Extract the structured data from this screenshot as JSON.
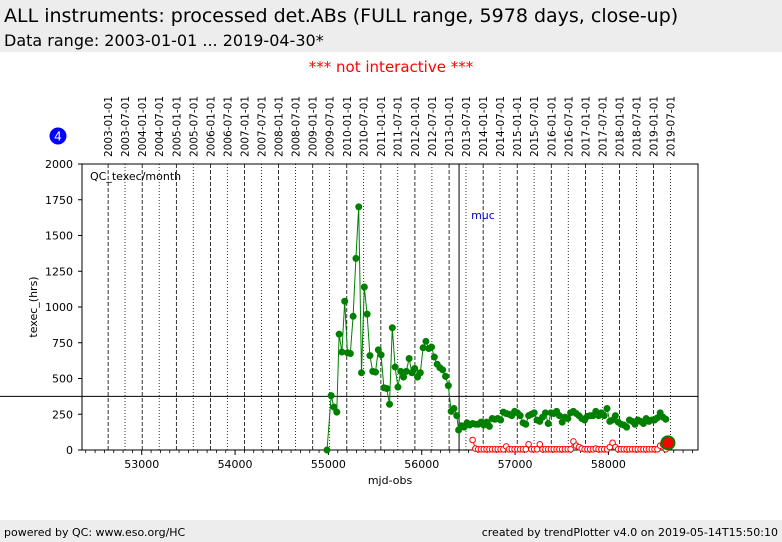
{
  "header": {
    "title": "ALL instruments: processed det.ABs (FULL range, 5978 days, close-up)",
    "subtitle": "Data range: 2003-01-01 ... 2019-04-30*"
  },
  "notice": "*** not interactive ***",
  "badge": "4",
  "footer": {
    "left": "powered by QC: www.eso.org/HC",
    "right": "created by trendPlotter v4.0 on 2019-05-14T15:50:10"
  },
  "colors": {
    "series_green": "#008000",
    "series_red": "#ff0000",
    "badge": "#0000ff",
    "marker_label": "#0000cc",
    "header_bg": "#ededed"
  },
  "chart_data": {
    "type": "scatter",
    "title": "",
    "panel_label": "QC_texec/month",
    "xlabel": "mjd-obs",
    "ylabel": "texec_(hrs)",
    "xlim": [
      52360,
      58960
    ],
    "ylim": [
      0,
      2000
    ],
    "x_ticks": [
      53000,
      54000,
      55000,
      56000,
      57000,
      58000
    ],
    "y_ticks": [
      0,
      250,
      500,
      750,
      1000,
      1250,
      1500,
      1750,
      2000
    ],
    "date_ticks": [
      {
        "mjd": 52640,
        "label": "2003-01-01"
      },
      {
        "mjd": 52821,
        "label": "2003-07-01"
      },
      {
        "mjd": 53005,
        "label": "2004-01-01"
      },
      {
        "mjd": 53187,
        "label": "2004-07-01"
      },
      {
        "mjd": 53371,
        "label": "2005-01-01"
      },
      {
        "mjd": 53552,
        "label": "2005-07-01"
      },
      {
        "mjd": 53736,
        "label": "2006-01-01"
      },
      {
        "mjd": 53917,
        "label": "2006-07-01"
      },
      {
        "mjd": 54101,
        "label": "2007-01-01"
      },
      {
        "mjd": 54282,
        "label": "2007-07-01"
      },
      {
        "mjd": 54466,
        "label": "2008-01-01"
      },
      {
        "mjd": 54648,
        "label": "2008-07-01"
      },
      {
        "mjd": 54832,
        "label": "2009-01-01"
      },
      {
        "mjd": 55013,
        "label": "2009-07-01"
      },
      {
        "mjd": 55197,
        "label": "2010-01-01"
      },
      {
        "mjd": 55378,
        "label": "2010-07-01"
      },
      {
        "mjd": 55562,
        "label": "2011-01-01"
      },
      {
        "mjd": 55743,
        "label": "2011-07-01"
      },
      {
        "mjd": 55927,
        "label": "2012-01-01"
      },
      {
        "mjd": 56109,
        "label": "2012-07-01"
      },
      {
        "mjd": 56293,
        "label": "2013-01-01"
      },
      {
        "mjd": 56474,
        "label": "2013-07-01"
      },
      {
        "mjd": 56658,
        "label": "2014-01-01"
      },
      {
        "mjd": 56839,
        "label": "2014-07-01"
      },
      {
        "mjd": 57023,
        "label": "2015-01-01"
      },
      {
        "mjd": 57204,
        "label": "2015-07-01"
      },
      {
        "mjd": 57388,
        "label": "2016-01-01"
      },
      {
        "mjd": 57570,
        "label": "2016-07-01"
      },
      {
        "mjd": 57754,
        "label": "2017-01-01"
      },
      {
        "mjd": 57935,
        "label": "2017-07-01"
      },
      {
        "mjd": 58119,
        "label": "2018-01-01"
      },
      {
        "mjd": 58300,
        "label": "2018-07-01"
      },
      {
        "mjd": 58484,
        "label": "2019-01-01"
      },
      {
        "mjd": 58665,
        "label": "2019-07-01"
      }
    ],
    "reference_line": {
      "y": 375
    },
    "event_marker": {
      "x": 56400,
      "label": "muc"
    },
    "series": [
      {
        "color": "#008000",
        "style": "line+filled",
        "x": [
          54985,
          55030,
          55060,
          55090,
          55115,
          55145,
          55175,
          55205,
          55235,
          55265,
          55295,
          55325,
          55355,
          55385,
          55415,
          55445,
          55475,
          55505,
          55535,
          55565,
          55595,
          55625,
          55655,
          55685,
          55715,
          55745,
          55775,
          55805,
          55835,
          55865,
          55895,
          55925,
          55955,
          55985,
          56015,
          56045,
          56075,
          56105,
          56135,
          56165,
          56195,
          56225,
          56255,
          56285,
          56315,
          56345,
          56375,
          56395,
          56425,
          56455,
          56485,
          56515,
          56545,
          56575,
          56605,
          56635,
          56665,
          56695,
          56725,
          56755,
          56785,
          56815,
          56845,
          56875,
          56905,
          56935,
          56965,
          56995,
          57025,
          57055,
          57085,
          57115,
          57145,
          57175,
          57205,
          57235,
          57265,
          57295,
          57325,
          57355,
          57385,
          57415,
          57445,
          57475,
          57505,
          57535,
          57565,
          57595,
          57625,
          57655,
          57685,
          57715,
          57745,
          57775,
          57805,
          57835,
          57865,
          57895,
          57925,
          57955,
          57985,
          58015,
          58045,
          58075,
          58105,
          58135,
          58165,
          58195,
          58225,
          58255,
          58285,
          58315,
          58345,
          58375,
          58405,
          58435,
          58465,
          58495,
          58525,
          58555,
          58585,
          58615
        ],
        "y": [
          0,
          380,
          300,
          265,
          810,
          685,
          1040,
          680,
          675,
          935,
          1340,
          1700,
          540,
          1140,
          950,
          660,
          550,
          545,
          700,
          665,
          435,
          430,
          320,
          855,
          580,
          440,
          550,
          510,
          550,
          640,
          540,
          570,
          510,
          540,
          715,
          760,
          710,
          720,
          650,
          600,
          575,
          560,
          515,
          450,
          270,
          290,
          240,
          140,
          170,
          160,
          190,
          175,
          185,
          180,
          180,
          195,
          175,
          195,
          165,
          220,
          215,
          220,
          210,
          265,
          255,
          250,
          240,
          270,
          260,
          240,
          190,
          180,
          240,
          250,
          260,
          210,
          200,
          230,
          260,
          185,
          260,
          255,
          270,
          240,
          195,
          230,
          220,
          260,
          270,
          255,
          240,
          220,
          210,
          235,
          240,
          240,
          270,
          240,
          260,
          240,
          290,
          200,
          210,
          240,
          195,
          180,
          175,
          160,
          210,
          200,
          180,
          210,
          200,
          185,
          220,
          200,
          210,
          210,
          225,
          260,
          230,
          215
        ]
      },
      {
        "color": "#ff0000",
        "style": "line+open",
        "x": [
          56545,
          56575,
          56605,
          56635,
          56665,
          56695,
          56725,
          56755,
          56785,
          56815,
          56845,
          56875,
          56905,
          56935,
          56965,
          56995,
          57025,
          57055,
          57085,
          57115,
          57145,
          57175,
          57205,
          57235,
          57265,
          57295,
          57325,
          57355,
          57385,
          57415,
          57445,
          57475,
          57505,
          57535,
          57565,
          57595,
          57625,
          57655,
          57685,
          57715,
          57745,
          57775,
          57805,
          57835,
          57865,
          57895,
          57925,
          57955,
          57985,
          58015,
          58045,
          58075,
          58105,
          58135,
          58165,
          58195,
          58225,
          58255,
          58285,
          58315,
          58345,
          58375,
          58405,
          58435,
          58465,
          58495,
          58525,
          58555,
          58585,
          58615
        ],
        "y": [
          70,
          10,
          5,
          5,
          5,
          5,
          5,
          5,
          5,
          5,
          5,
          5,
          25,
          5,
          5,
          5,
          5,
          5,
          5,
          5,
          40,
          5,
          5,
          5,
          40,
          5,
          5,
          5,
          5,
          5,
          5,
          5,
          5,
          5,
          5,
          5,
          60,
          30,
          20,
          10,
          5,
          5,
          5,
          5,
          10,
          5,
          5,
          5,
          5,
          20,
          50,
          20,
          5,
          5,
          5,
          5,
          5,
          5,
          5,
          5,
          5,
          5,
          5,
          5,
          5,
          5,
          5,
          30,
          40,
          5
        ]
      }
    ],
    "highlight_point": {
      "x": 58638,
      "y": 50,
      "color": "#ff0000",
      "ring": "#008000"
    },
    "grid": false
  }
}
